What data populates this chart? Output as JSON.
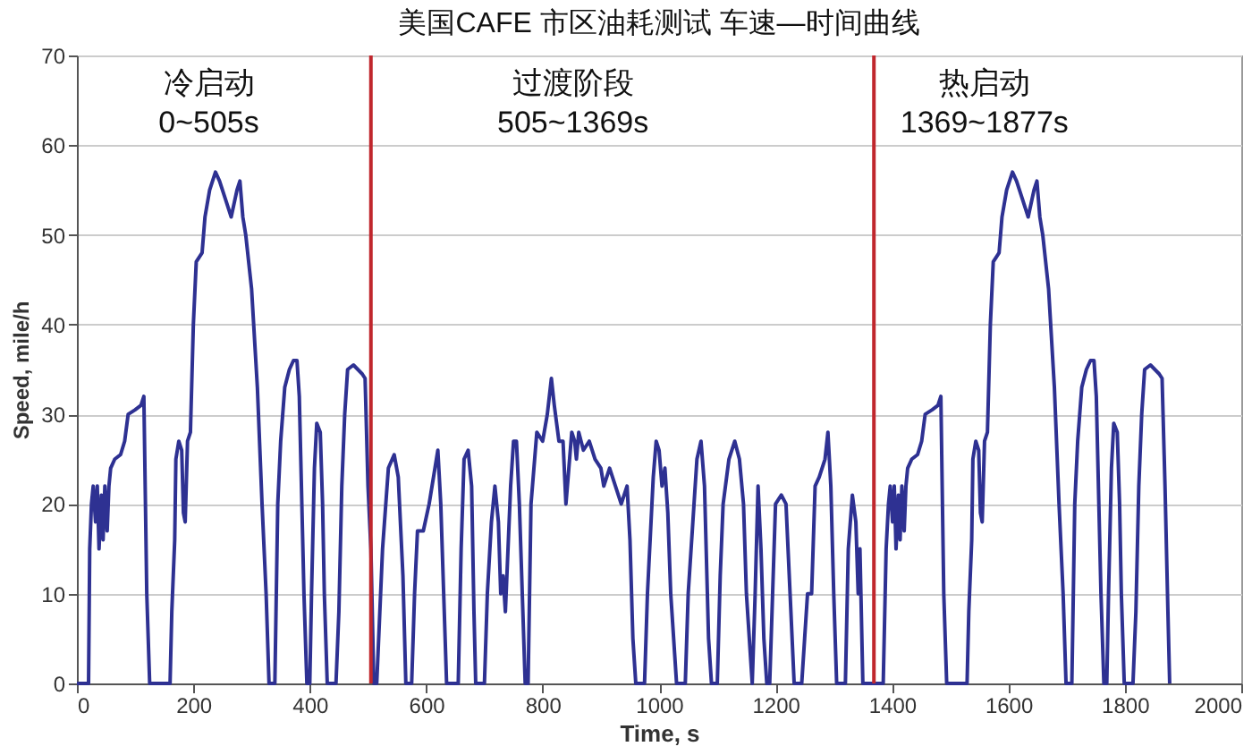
{
  "chart_data": {
    "type": "line",
    "title": "美国CAFE 市区油耗测试 车速—时间曲线",
    "xlabel": "Time, s",
    "ylabel": "Speed, mile/h",
    "xlim": [
      0,
      2000
    ],
    "xticks": [
      0,
      200,
      400,
      600,
      800,
      1000,
      1200,
      1400,
      1600,
      1800,
      2000
    ],
    "ylim": [
      0,
      70
    ],
    "yticks": [
      0,
      10,
      20,
      30,
      40,
      50,
      60,
      70
    ],
    "grid": "y",
    "marker": "none",
    "line_style": "solid",
    "ref_lines": [
      {
        "axis": "x",
        "value": 505,
        "color": "#c0272d"
      },
      {
        "axis": "x",
        "value": 1369,
        "color": "#c0272d"
      }
    ],
    "annotations": [
      "冷启动\n0~505s",
      "过渡阶段\n505~1369s",
      "热启动\n1369~1877s"
    ],
    "series": [
      {
        "color": "#2e3192",
        "x": [
          0,
          20,
          22,
          25,
          28,
          32,
          35,
          38,
          42,
          45,
          48,
          52,
          55,
          58,
          65,
          75,
          82,
          88,
          100,
          110,
          115,
          120,
          125,
          160,
          163,
          168,
          170,
          175,
          180,
          183,
          186,
          190,
          195,
          200,
          205,
          215,
          220,
          228,
          238,
          245,
          255,
          265,
          275,
          280,
          285,
          290,
          300,
          310,
          318,
          325,
          330,
          340,
          345,
          350,
          357,
          365,
          372,
          378,
          382,
          390,
          395,
          400,
          403,
          408,
          412,
          418,
          422,
          425,
          430,
          445,
          450,
          455,
          460,
          465,
          475,
          490,
          495,
          500,
          505,
          510,
          515,
          525,
          535,
          545,
          552,
          560,
          565,
          575,
          580,
          585,
          595,
          605,
          615,
          620,
          625,
          630,
          635,
          655,
          660,
          665,
          672,
          678,
          682,
          685,
          700,
          705,
          712,
          718,
          724,
          728,
          732,
          736,
          745,
          750,
          755,
          760,
          765,
          770,
          775,
          780,
          790,
          800,
          808,
          815,
          820,
          828,
          835,
          840,
          845,
          850,
          855,
          858,
          862,
          870,
          880,
          890,
          900,
          905,
          915,
          925,
          935,
          945,
          950,
          955,
          960,
          975,
          980,
          990,
          995,
          1000,
          1005,
          1010,
          1015,
          1020,
          1030,
          1045,
          1050,
          1060,
          1065,
          1072,
          1078,
          1085,
          1090,
          1100,
          1105,
          1110,
          1120,
          1130,
          1138,
          1145,
          1150,
          1160,
          1165,
          1170,
          1175,
          1180,
          1185,
          1190,
          1195,
          1200,
          1210,
          1218,
          1225,
          1232,
          1245,
          1250,
          1255,
          1262,
          1268,
          1275,
          1285,
          1290,
          1295,
          1300,
          1305,
          1320,
          1325,
          1332,
          1338,
          1342,
          1345,
          1350,
          1385,
          1390,
          1394,
          1397,
          1401,
          1404,
          1407,
          1411,
          1414,
          1417,
          1421,
          1424,
          1427,
          1434,
          1444,
          1451,
          1457,
          1469,
          1479,
          1484,
          1489,
          1494,
          1529,
          1532,
          1537,
          1539,
          1544,
          1549,
          1552,
          1555,
          1559,
          1564,
          1569,
          1574,
          1584,
          1589,
          1597,
          1607,
          1614,
          1624,
          1634,
          1644,
          1649,
          1654,
          1659,
          1669,
          1679,
          1687,
          1694,
          1699,
          1709,
          1714,
          1719,
          1726,
          1734,
          1741,
          1747,
          1751,
          1759,
          1764,
          1769,
          1772,
          1777,
          1781,
          1787,
          1791,
          1794,
          1799,
          1814,
          1819,
          1824,
          1829,
          1834,
          1844,
          1859,
          1864,
          1869,
          1874,
          1877
        ],
        "values": [
          0,
          0,
          15,
          20,
          22,
          18,
          22,
          15,
          21,
          16,
          22,
          17,
          22,
          24,
          25,
          25.5,
          27,
          30,
          30.5,
          31,
          32,
          10,
          0,
          0,
          8,
          16,
          25,
          27,
          26,
          19,
          18,
          27,
          28,
          40,
          47,
          48,
          52,
          55,
          57,
          56,
          54,
          52,
          55,
          56,
          52,
          50,
          44,
          33,
          20,
          10,
          0,
          0,
          20,
          27,
          33,
          35,
          36,
          36,
          32,
          10,
          0,
          0,
          10,
          24,
          29,
          28,
          20,
          10,
          0,
          0,
          8,
          22,
          30,
          35,
          35.5,
          34.5,
          34,
          22,
          15,
          0,
          0,
          15,
          24,
          25.5,
          23,
          12,
          0,
          0,
          10,
          17,
          17,
          20,
          24,
          26,
          20,
          10,
          0,
          0,
          15,
          25,
          26,
          22,
          8,
          0,
          0,
          10,
          18,
          22,
          18,
          10,
          12,
          8,
          22,
          27,
          27,
          20,
          10,
          0,
          0,
          20,
          28,
          27,
          30,
          34,
          31,
          27,
          27,
          20,
          24,
          28,
          27,
          25,
          28,
          26,
          27,
          25,
          24,
          22,
          24,
          22,
          20,
          22,
          16,
          5,
          0,
          0,
          10,
          23,
          27,
          26,
          22,
          24,
          19,
          10,
          0,
          0,
          10,
          20,
          25,
          27,
          22,
          5,
          0,
          0,
          12,
          20,
          25,
          27,
          25,
          20,
          10,
          0,
          10,
          22,
          15,
          5,
          0,
          0,
          10,
          20,
          21,
          20,
          10,
          0,
          0,
          5,
          10,
          10,
          22,
          23,
          25,
          28,
          22,
          10,
          0,
          0,
          15,
          21,
          18,
          10,
          15,
          0,
          0,
          15,
          20,
          22,
          18,
          22,
          15,
          21,
          16,
          22,
          17,
          22,
          24,
          25,
          25.5,
          27,
          30,
          30.5,
          31,
          32,
          10,
          0,
          0,
          8,
          16,
          25,
          27,
          26,
          19,
          18,
          27,
          28,
          40,
          47,
          48,
          52,
          55,
          57,
          56,
          54,
          52,
          55,
          56,
          52,
          50,
          44,
          33,
          20,
          10,
          0,
          0,
          20,
          27,
          33,
          35,
          36,
          36,
          32,
          10,
          0,
          0,
          10,
          24,
          29,
          28,
          20,
          10,
          0,
          0,
          8,
          22,
          30,
          35,
          35.5,
          34.5,
          34,
          22,
          8,
          0
        ]
      }
    ]
  }
}
